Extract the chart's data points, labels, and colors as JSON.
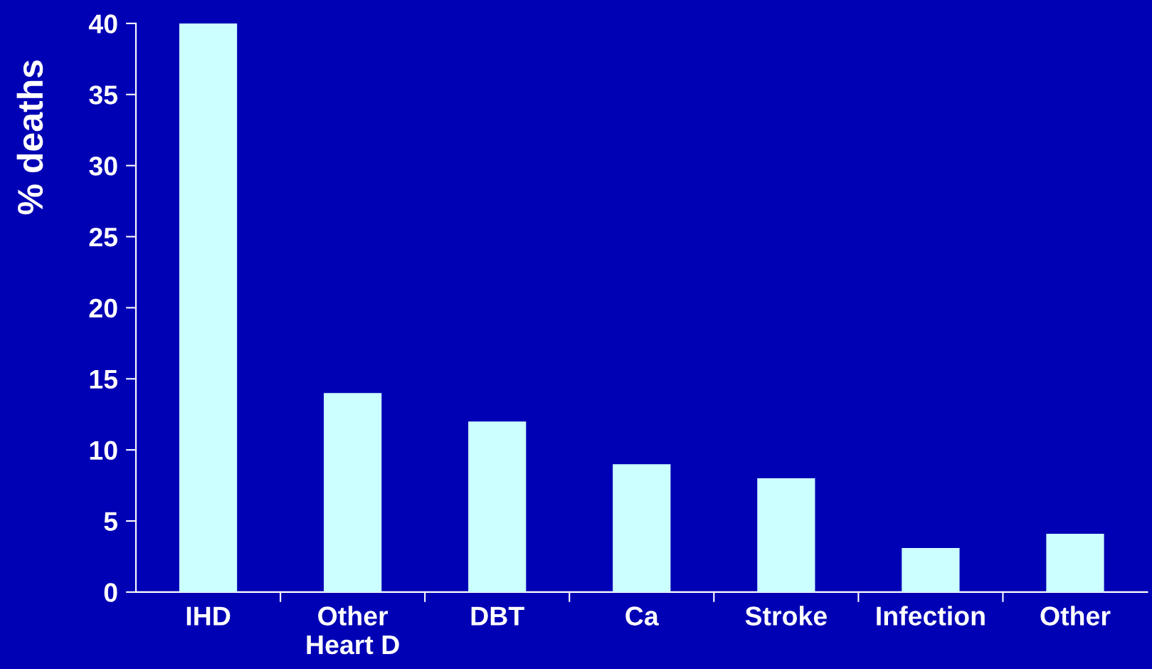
{
  "chart_data": {
    "type": "bar",
    "ylabel": "% deaths",
    "categories": [
      "IHD",
      "Other\nHeart D",
      "DBT",
      "Ca",
      "Stroke",
      "Infection",
      "Other"
    ],
    "values": [
      40,
      14,
      12,
      9,
      8,
      3.1,
      4.1
    ],
    "color": "#ccffff",
    "ylim": [
      0,
      40
    ],
    "yticks": [
      0,
      5,
      10,
      15,
      20,
      25,
      30,
      35,
      40
    ],
    "grid": false,
    "legend": false
  }
}
